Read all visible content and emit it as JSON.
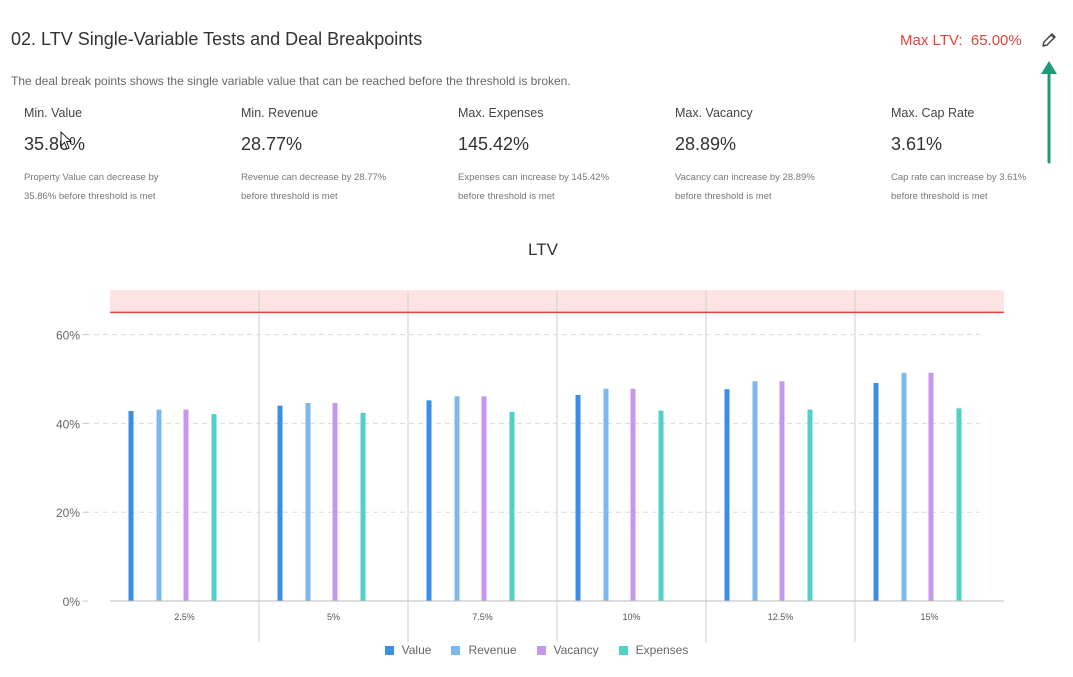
{
  "header": {
    "title": "02. LTV Single-Variable Tests and Deal Breakpoints",
    "max_ltv_label": "Max LTV:",
    "max_ltv_value": "65.00%",
    "edit_icon": "pencil-icon",
    "description": "The deal break points shows the single variable value that can be reached before the threshold is broken."
  },
  "metrics": [
    {
      "label": "Min. Value",
      "value": "35.86%",
      "note_line1": "Property Value can decrease by",
      "note_line2": "35.86% before threshold is met"
    },
    {
      "label": "Min. Revenue",
      "value": "28.77%",
      "note_line1": "Revenue can decrease by 28.77%",
      "note_line2": "before threshold is met"
    },
    {
      "label": "Max. Expenses",
      "value": "145.42%",
      "note_line1": "Expenses can increase by 145.42%",
      "note_line2": "before threshold is met"
    },
    {
      "label": "Max. Vacancy",
      "value": "28.89%",
      "note_line1": "Vacancy can increase by 28.89%",
      "note_line2": "before threshold is met"
    },
    {
      "label": "Max. Cap Rate",
      "value": "3.61%",
      "note_line1": "Cap rate can increase by 3.61%",
      "note_line2": "before threshold is met"
    }
  ],
  "colors": {
    "threshold": "#e0443e",
    "threshold_band": "#fde3e3",
    "annotation_arrow": "#1f9a78"
  },
  "chart_data": {
    "type": "bar",
    "title": "LTV",
    "categories": [
      "2.5%",
      "5%",
      "7.5%",
      "10%",
      "12.5%",
      "15%"
    ],
    "yticks": [
      "0%",
      "20%",
      "40%",
      "60%"
    ],
    "ylim": [
      0,
      70
    ],
    "threshold": 65,
    "grid": true,
    "legend_position": "bottom",
    "series": [
      {
        "name": "Value",
        "color": "#3a8ee6",
        "values": [
          42.8,
          44.0,
          45.2,
          46.4,
          47.7,
          49.1
        ]
      },
      {
        "name": "Revenue",
        "color": "#7cb8ee",
        "values": [
          43.1,
          44.6,
          46.1,
          47.8,
          49.5,
          51.4
        ]
      },
      {
        "name": "Vacancy",
        "color": "#c597ef",
        "values": [
          43.1,
          44.6,
          46.1,
          47.8,
          49.5,
          51.4
        ]
      },
      {
        "name": "Expenses",
        "color": "#4fd1c5",
        "values": [
          42.1,
          42.4,
          42.6,
          42.9,
          43.1,
          43.4
        ]
      }
    ]
  }
}
